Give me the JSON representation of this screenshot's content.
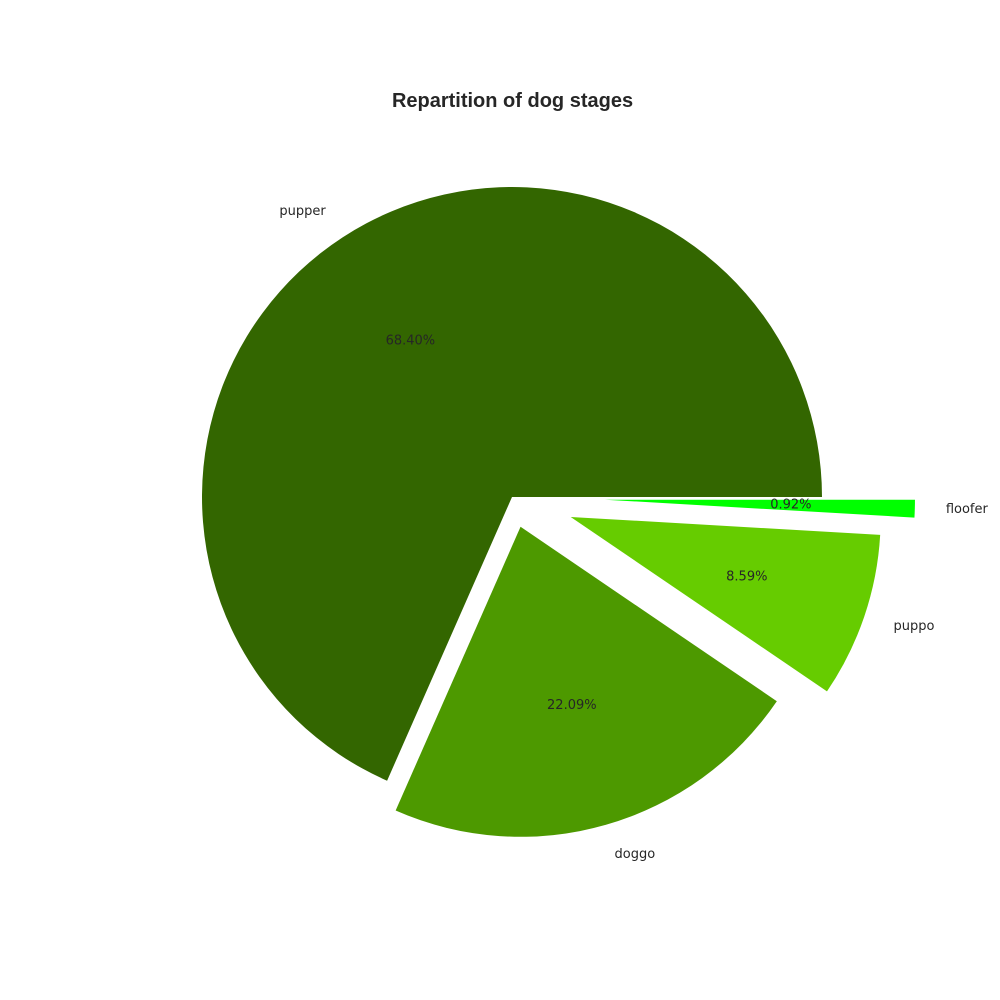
{
  "chart_data": {
    "type": "pie",
    "title": "Repartition of dog stages",
    "categories": [
      "pupper",
      "doggo",
      "puppo",
      "floofer"
    ],
    "values": [
      68.4,
      22.09,
      8.59,
      0.92
    ],
    "value_labels": [
      "68.40%",
      "22.09%",
      "8.59%",
      "0.92%"
    ],
    "colors": [
      "#336600",
      "#4d9900",
      "#66cc00",
      "#00ff00"
    ],
    "explode": [
      0,
      0.1,
      0.2,
      0.3
    ],
    "start_angle": 0,
    "direction": "counterclockwise",
    "legend": "none"
  }
}
